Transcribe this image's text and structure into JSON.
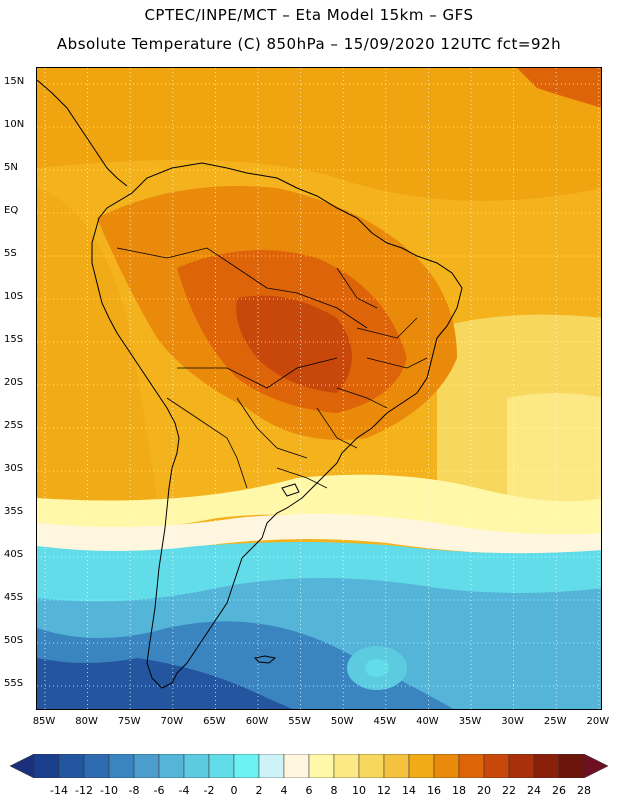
{
  "header": {
    "line1": "CPTEC/INPE/MCT –  Eta Model 15km – GFS",
    "line2": "Absolute Temperature (C) 850hPa – 15/09/2020 12UTC fct=92h"
  },
  "map": {
    "lat_labels": [
      "15N",
      "10N",
      "5N",
      "EQ",
      "5S",
      "10S",
      "15S",
      "20S",
      "25S",
      "30S",
      "35S",
      "40S",
      "45S",
      "50S",
      "55S"
    ],
    "lat_values": [
      15,
      10,
      5,
      0,
      -5,
      -10,
      -15,
      -20,
      -25,
      -30,
      -35,
      -40,
      -45,
      -50,
      -55
    ],
    "lon_labels": [
      "85W",
      "80W",
      "75W",
      "70W",
      "65W",
      "60W",
      "55W",
      "50W",
      "45W",
      "40W",
      "35W",
      "30W",
      "25W",
      "20W"
    ],
    "lon_values": [
      -85,
      -80,
      -75,
      -70,
      -65,
      -60,
      -55,
      -50,
      -45,
      -40,
      -35,
      -30,
      -25,
      -20
    ]
  },
  "colorbar": {
    "labels": [
      "-14",
      "-12",
      "-10",
      "-8",
      "-6",
      "-4",
      "-2",
      "0",
      "2",
      "4",
      "6",
      "8",
      "10",
      "12",
      "14",
      "16",
      "18",
      "20",
      "22",
      "24",
      "26",
      "28"
    ],
    "colors": [
      "#1a3f8c",
      "#24559f",
      "#2f6bb0",
      "#3a85c0",
      "#4a9dcc",
      "#55b5d8",
      "#5ccbe0",
      "#62dce8",
      "#6cf2f2",
      "#cdf3f7",
      "#fff6e0",
      "#fff8a8",
      "#fce884",
      "#f7d75e",
      "#f4c23e",
      "#f0ab17",
      "#ea8a0a",
      "#de640a",
      "#c8470a",
      "#a9300a",
      "#8a1f0a",
      "#6b150a"
    ],
    "left_arrow_color": "#1c2f7a",
    "right_arrow_color": "#6e0f22"
  }
}
